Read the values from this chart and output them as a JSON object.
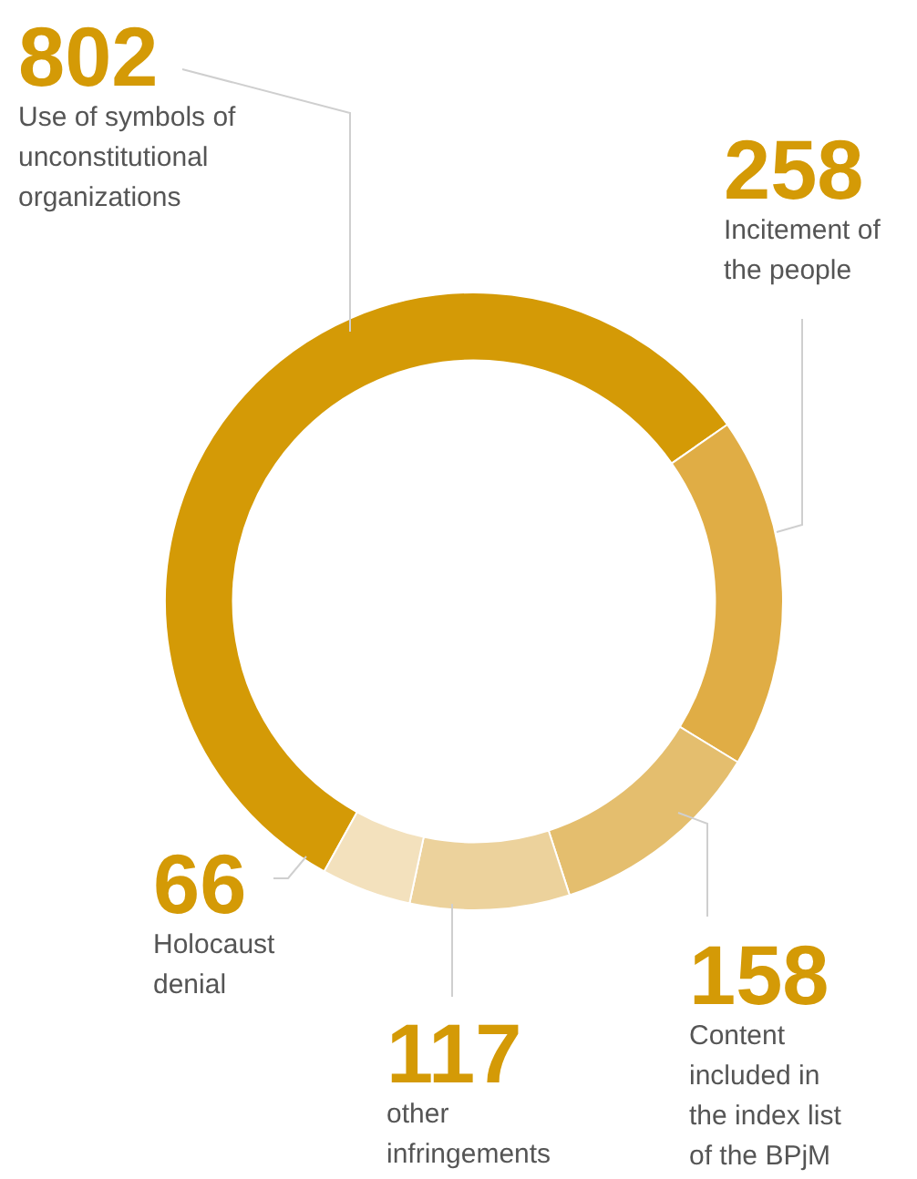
{
  "chart_data": {
    "type": "donut",
    "categories": [
      "Use of symbols of unconstitutional organizations",
      "Incitement of the people",
      "Content included in the index list of the BPjM",
      "other infringements",
      "Holocaust denial"
    ],
    "values": [
      802,
      258,
      158,
      117,
      66
    ],
    "colors": [
      "#d49a06",
      "#e0ad45",
      "#e4be6e",
      "#ecd29c",
      "#f3e1bd"
    ],
    "data_labels": true,
    "legend": false
  }
}
